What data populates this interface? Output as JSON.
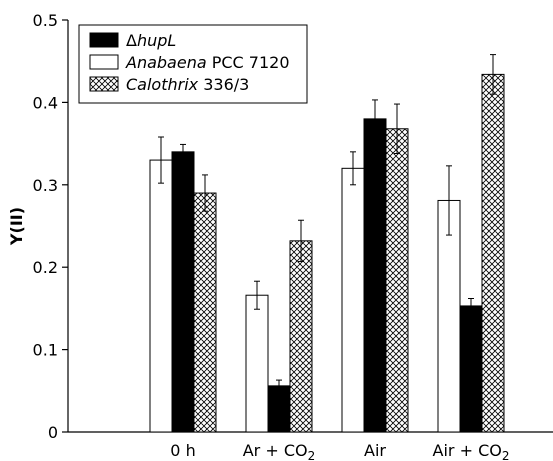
{
  "chart_data": {
    "type": "bar",
    "title": "",
    "xlabel": "",
    "ylabel": "Y(II)",
    "ylim": [
      0,
      0.5
    ],
    "yticks": [
      0,
      0.1,
      0.2,
      0.3,
      0.4,
      0.5
    ],
    "ytick_labels": [
      "0",
      "0.1",
      "0.2",
      "0.3",
      "0.4",
      "0.5"
    ],
    "grid": false,
    "legend_position": "top-left",
    "categories": [
      {
        "main": "0 h",
        "sub": ""
      },
      {
        "main": "Ar + CO",
        "sub": "2"
      },
      {
        "main": "Air",
        "sub": ""
      },
      {
        "main": "Air + CO",
        "sub": "2"
      }
    ],
    "series": [
      {
        "name": "Anabaena PCC 7120",
        "name_parts": [
          {
            "text": "Anabaena",
            "italic": true
          },
          {
            "text": " PCC 7120",
            "italic": false
          }
        ],
        "style": "white",
        "values": [
          0.33,
          0.166,
          0.32,
          0.281
        ],
        "errors": [
          0.028,
          0.017,
          0.02,
          0.042
        ]
      },
      {
        "name": "ΔhupL",
        "name_parts": [
          {
            "text": "Δ",
            "italic": false
          },
          {
            "text": "hupL",
            "italic": true
          }
        ],
        "style": "black",
        "values": [
          0.34,
          0.056,
          0.38,
          0.153
        ],
        "errors": [
          0.009,
          0.007,
          0.023,
          0.009
        ]
      },
      {
        "name": "Calothrix 336/3",
        "name_parts": [
          {
            "text": "Calothrix",
            "italic": true
          },
          {
            "text": " 336/3",
            "italic": false
          }
        ],
        "style": "crosshatch",
        "values": [
          0.29,
          0.232,
          0.368,
          0.434
        ],
        "errors": [
          0.022,
          0.025,
          0.03,
          0.024
        ]
      }
    ],
    "legend_order": [
      1,
      0,
      2
    ],
    "colors": {
      "white": "#ffffff",
      "black": "#000000",
      "hatch": "#000000"
    }
  }
}
